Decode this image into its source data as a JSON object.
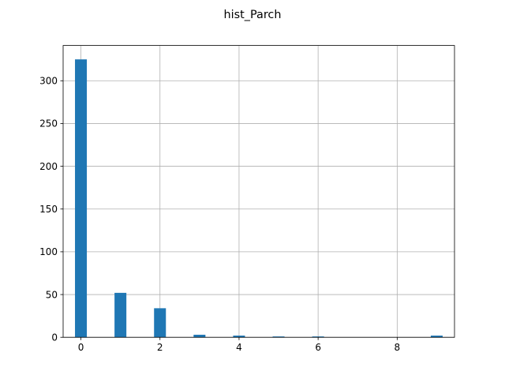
{
  "chart_data": {
    "type": "bar",
    "title": "hist_Parch",
    "xlabel": "",
    "ylabel": "",
    "xlim": [
      -0.45,
      9.45
    ],
    "ylim": [
      0,
      341.25
    ],
    "bin_width": 0.3,
    "bins": [
      {
        "x": 0,
        "count": 325
      },
      {
        "x": 1,
        "count": 52
      },
      {
        "x": 2,
        "count": 34
      },
      {
        "x": 3,
        "count": 3
      },
      {
        "x": 4,
        "count": 2
      },
      {
        "x": 5,
        "count": 1
      },
      {
        "x": 6,
        "count": 1
      },
      {
        "x": 9,
        "count": 2
      }
    ],
    "x_ticks": [
      0,
      2,
      4,
      6,
      8
    ],
    "y_ticks": [
      0,
      50,
      100,
      150,
      200,
      250,
      300
    ],
    "grid": true,
    "bar_color": "#1f77b4"
  }
}
